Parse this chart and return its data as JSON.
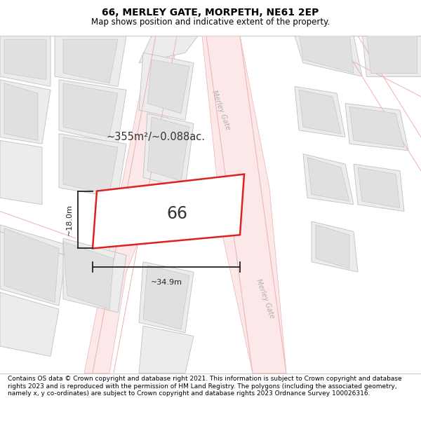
{
  "title_line1": "66, MERLEY GATE, MORPETH, NE61 2EP",
  "title_line2": "Map shows position and indicative extent of the property.",
  "footer_text": "Contains OS data © Crown copyright and database right 2021. This information is subject to Crown copyright and database rights 2023 and is reproduced with the permission of HM Land Registry. The polygons (including the associated geometry, namely x, y co-ordinates) are subject to Crown copyright and database rights 2023 Ordnance Survey 100026316.",
  "area_text": "~355m²/~0.088ac.",
  "label_66": "66",
  "dim_width": "~34.9m",
  "dim_height": "~18.0m",
  "map_bg": "#ffffff",
  "road_color_fill": "#fce8e8",
  "road_line_color": "#f0b0b0",
  "building_outline_color": "#dd2222",
  "building_fill": "#ffffff",
  "road_label": "Merley Gate",
  "plot_fill": "#ececec",
  "plot_outline": "#c0c0c0",
  "inner_fill": "#e0e0e0",
  "title_bg": "#ffffff",
  "footer_bg": "#ffffff",
  "dim_color": "#222222",
  "area_color": "#333333"
}
